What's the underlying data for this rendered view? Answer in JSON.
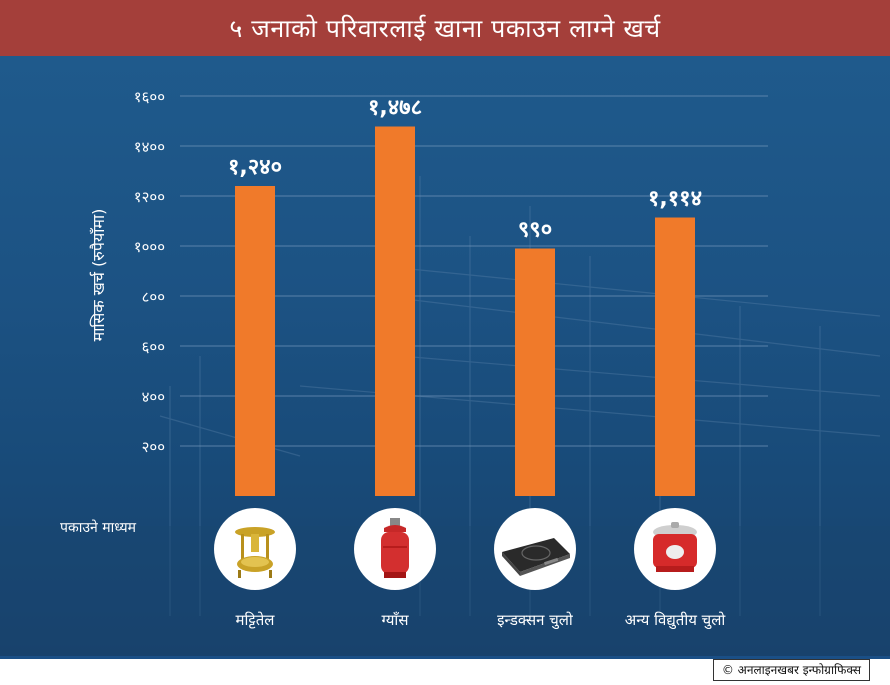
{
  "title": "५ जनाको परिवारलाई खाना पकाउन लाग्ने खर्च",
  "chart_data": {
    "type": "bar",
    "categories": [
      "मट्टितेल",
      "ग्याँस",
      "इन्डक्सन चुलो",
      "अन्य विद्युतीय चुलो"
    ],
    "values": [
      1240,
      1478,
      990,
      1114
    ],
    "value_labels": [
      "१,२४०",
      "१,४७८",
      "९९०",
      "१,११४"
    ],
    "ylabel": "मासिक खर्च (रुपैयाँमा)",
    "ylim": [
      0,
      1600
    ],
    "yticks": [
      200,
      400,
      600,
      800,
      1000,
      1200,
      1400,
      1600
    ],
    "ytick_labels": [
      "२००",
      "४००",
      "६००",
      "८००",
      "१०००",
      "१२००",
      "१४००",
      "१६००"
    ],
    "grid": true,
    "bar_color": "#f07a2a"
  },
  "medium_label": "पकाउने माध्यम",
  "icons": [
    "kerosene-stove-icon",
    "gas-cylinder-icon",
    "induction-cooktop-icon",
    "rice-cooker-icon"
  ],
  "credit": "© अनलाइनखबर इन्फोग्राफिक्स"
}
